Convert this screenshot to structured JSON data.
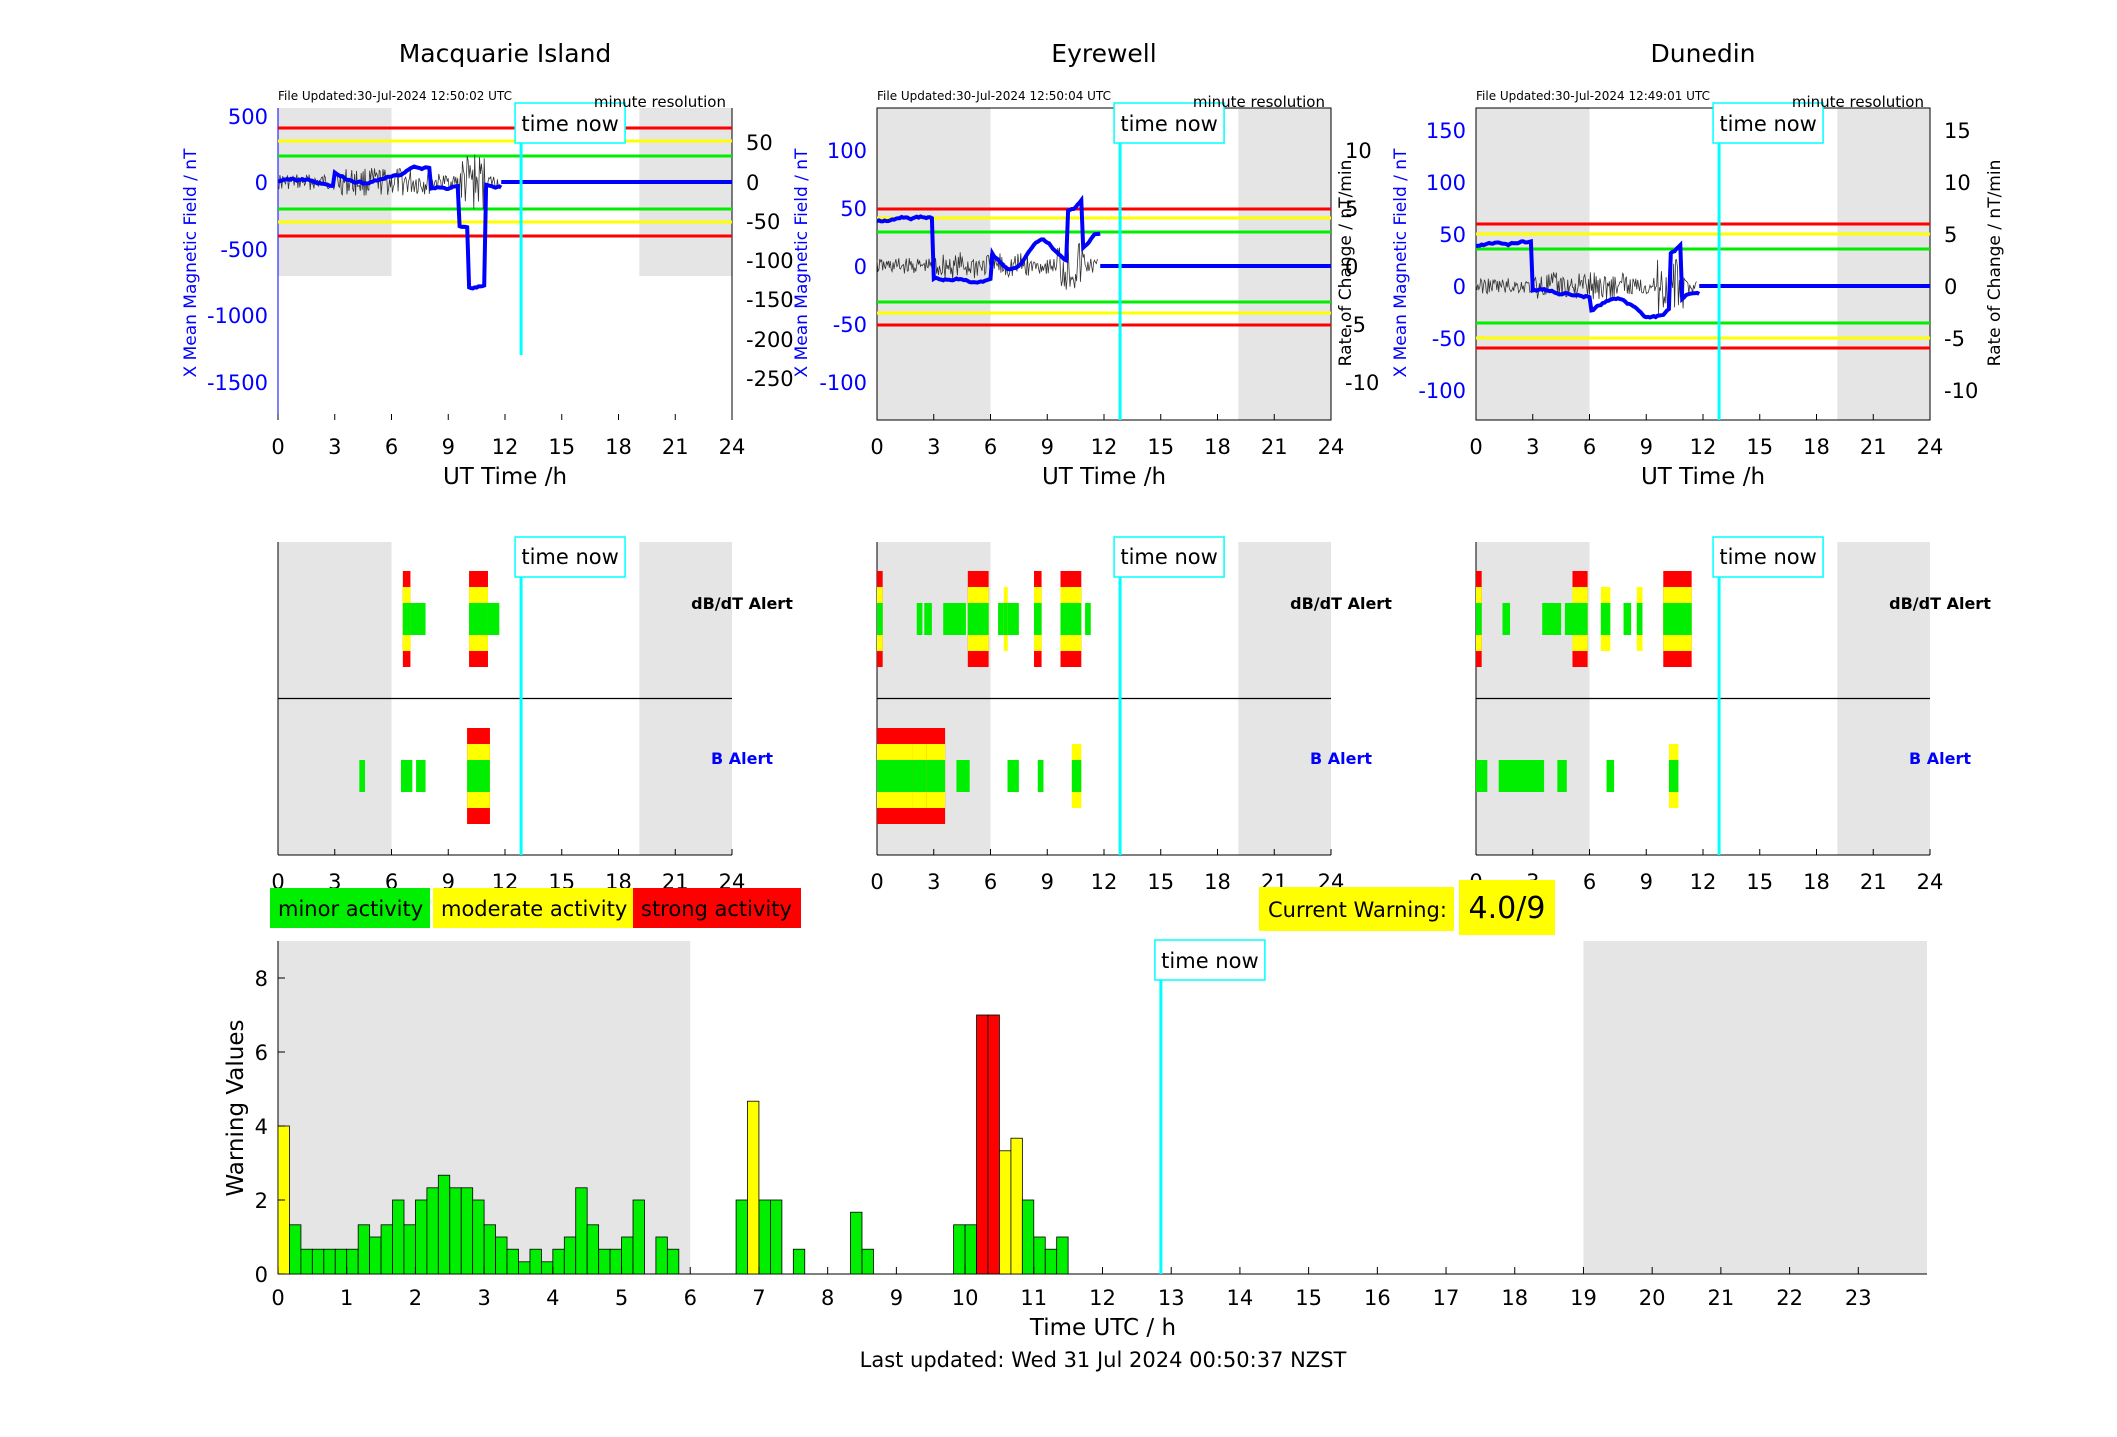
{
  "stations": [
    {
      "name": "Macquarie Island",
      "file_updated": "File Updated:30-Jul-2024 12:50:02 UTC",
      "resolution": "minute resolution",
      "left_axis_label": "X Mean Magnetic Field / nT",
      "left_ticks": [
        "500",
        "0",
        "-500",
        "-1000",
        "-1500"
      ],
      "right_ticks": [
        "50",
        "0",
        "-50",
        "-100",
        "-150",
        "-200",
        "-250"
      ],
      "dbdt_segments": [
        [
          6.6,
          7.0,
          1
        ],
        [
          7.0,
          7.8,
          0
        ],
        [
          6.6,
          7.0,
          2
        ],
        [
          10.1,
          11.1,
          2
        ],
        [
          11.1,
          11.7,
          0
        ]
      ],
      "b_segments": [
        [
          4.3,
          4.6,
          0
        ],
        [
          6.5,
          7.1,
          0
        ],
        [
          7.3,
          7.8,
          0
        ],
        [
          10.0,
          11.2,
          3
        ]
      ]
    },
    {
      "name": "Eyrewell",
      "file_updated": "File Updated:30-Jul-2024 12:50:04 UTC",
      "resolution": "minute resolution",
      "left_axis_label": "X Mean Magnetic Field / nT",
      "right_axis_label": "Rate of Change / nT/min",
      "left_ticks": [
        "100",
        "50",
        "0",
        "-50",
        "-100"
      ],
      "right_ticks": [
        "10",
        "5",
        "0",
        "-5",
        "-10"
      ],
      "dbdt_segments": [
        [
          0,
          0.3,
          2
        ],
        [
          2.1,
          2.4,
          0
        ],
        [
          2.5,
          2.9,
          0
        ],
        [
          3.5,
          4.7,
          0
        ],
        [
          4.8,
          5.9,
          2
        ],
        [
          6.4,
          7.5,
          0
        ],
        [
          6.7,
          6.9,
          1
        ],
        [
          8.3,
          8.7,
          2
        ],
        [
          9.7,
          10.8,
          2
        ],
        [
          11.0,
          11.3,
          0
        ]
      ],
      "b_segments": [
        [
          0,
          3.6,
          2
        ],
        [
          1.9,
          2.6,
          3
        ],
        [
          4.2,
          4.9,
          0
        ],
        [
          6.9,
          7.5,
          0
        ],
        [
          8.5,
          8.8,
          0
        ],
        [
          10.3,
          10.8,
          1
        ]
      ]
    },
    {
      "name": "Dunedin",
      "file_updated": "File Updated:30-Jul-2024 12:49:01 UTC",
      "resolution": "minute resolution",
      "left_axis_label": "X Mean Magnetic Field / nT",
      "right_axis_label": "Rate of Change / nT/min",
      "left_ticks": [
        "150",
        "100",
        "50",
        "0",
        "-50",
        "-100"
      ],
      "right_ticks": [
        "15",
        "10",
        "5",
        "0",
        "-5",
        "-10"
      ],
      "dbdt_segments": [
        [
          0,
          0.3,
          2
        ],
        [
          1.4,
          1.8,
          0
        ],
        [
          3.5,
          4.5,
          0
        ],
        [
          4.7,
          5.1,
          0
        ],
        [
          5.1,
          5.9,
          2
        ],
        [
          6.6,
          7.1,
          1
        ],
        [
          7.8,
          8.2,
          0
        ],
        [
          8.5,
          8.8,
          1
        ],
        [
          9.9,
          11.4,
          2
        ]
      ],
      "b_segments": [
        [
          0,
          0.6,
          0
        ],
        [
          1.2,
          3.6,
          0
        ],
        [
          4.3,
          4.8,
          0
        ],
        [
          6.9,
          7.3,
          0
        ],
        [
          10.2,
          10.7,
          1
        ]
      ]
    }
  ],
  "dbdt_label": "dB/dT Alert",
  "b_label": "B Alert",
  "ut_axis_label": "UT Time /h",
  "hour_ticks": [
    "0",
    "3",
    "6",
    "9",
    "12",
    "15",
    "18",
    "21",
    "24"
  ],
  "time_now_label": "time now",
  "time_now_hour": 12.85,
  "legend": {
    "minor": "minor activity",
    "moderate": "moderate activity",
    "strong": "strong activity"
  },
  "current_warning": {
    "label": "Current Warning:",
    "value": "4.0/9"
  },
  "colors": {
    "minor": "#00ee00",
    "moderate": "#ffff00",
    "strong": "#ff0000",
    "night_shade": "#e5e5e5",
    "time_now": "#00ffff",
    "field_line": "#0000ff"
  },
  "chart_data": {
    "type": "bar",
    "xlabel": "Time UTC / h",
    "ylabel": "Warning Values",
    "ylim": [
      0,
      9
    ],
    "xlim": [
      0,
      24
    ],
    "y_ticks": [
      "0",
      "2",
      "4",
      "6",
      "8"
    ],
    "x_ticks": [
      "0",
      "1",
      "2",
      "3",
      "4",
      "5",
      "6",
      "7",
      "8",
      "9",
      "10",
      "11",
      "12",
      "13",
      "14",
      "15",
      "16",
      "17",
      "18",
      "19",
      "20",
      "21",
      "22",
      "23"
    ],
    "bar_width_h": 0.1667,
    "bars": [
      [
        0.0,
        4.0,
        1
      ],
      [
        0.167,
        1.33,
        0
      ],
      [
        0.333,
        0.67,
        0
      ],
      [
        0.5,
        0.67,
        0
      ],
      [
        0.667,
        0.67,
        0
      ],
      [
        0.833,
        0.67,
        0
      ],
      [
        1.0,
        0.67,
        0
      ],
      [
        1.167,
        1.33,
        0
      ],
      [
        1.333,
        1.0,
        0
      ],
      [
        1.5,
        1.33,
        0
      ],
      [
        1.667,
        2.0,
        0
      ],
      [
        1.833,
        1.33,
        0
      ],
      [
        2.0,
        2.0,
        0
      ],
      [
        2.167,
        2.33,
        0
      ],
      [
        2.333,
        2.67,
        0
      ],
      [
        2.5,
        2.33,
        0
      ],
      [
        2.667,
        2.33,
        0
      ],
      [
        2.833,
        2.0,
        0
      ],
      [
        3.0,
        1.33,
        0
      ],
      [
        3.167,
        1.0,
        0
      ],
      [
        3.333,
        0.67,
        0
      ],
      [
        3.5,
        0.33,
        0
      ],
      [
        3.667,
        0.67,
        0
      ],
      [
        3.833,
        0.33,
        0
      ],
      [
        4.0,
        0.67,
        0
      ],
      [
        4.167,
        1.0,
        0
      ],
      [
        4.333,
        2.33,
        0
      ],
      [
        4.5,
        1.33,
        0
      ],
      [
        4.667,
        0.67,
        0
      ],
      [
        4.833,
        0.67,
        0
      ],
      [
        5.0,
        1.0,
        0
      ],
      [
        5.167,
        2.0,
        0
      ],
      [
        5.5,
        1.0,
        0
      ],
      [
        5.667,
        0.67,
        0
      ],
      [
        6.667,
        2.0,
        0
      ],
      [
        6.833,
        4.67,
        1
      ],
      [
        7.0,
        2.0,
        0
      ],
      [
        7.167,
        2.0,
        0
      ],
      [
        7.5,
        0.67,
        0
      ],
      [
        8.333,
        1.67,
        0
      ],
      [
        8.5,
        0.67,
        0
      ],
      [
        9.833,
        1.33,
        0
      ],
      [
        10.0,
        1.33,
        0
      ],
      [
        10.167,
        7.0,
        2
      ],
      [
        10.333,
        7.0,
        2
      ],
      [
        10.5,
        3.33,
        1
      ],
      [
        10.667,
        3.67,
        1
      ],
      [
        10.833,
        2.0,
        0
      ],
      [
        11.0,
        1.0,
        0
      ],
      [
        11.167,
        0.67,
        0
      ],
      [
        11.333,
        1.0,
        0
      ]
    ]
  },
  "last_updated": "Last updated: Wed 31 Jul 2024 00:50:37 NZST"
}
